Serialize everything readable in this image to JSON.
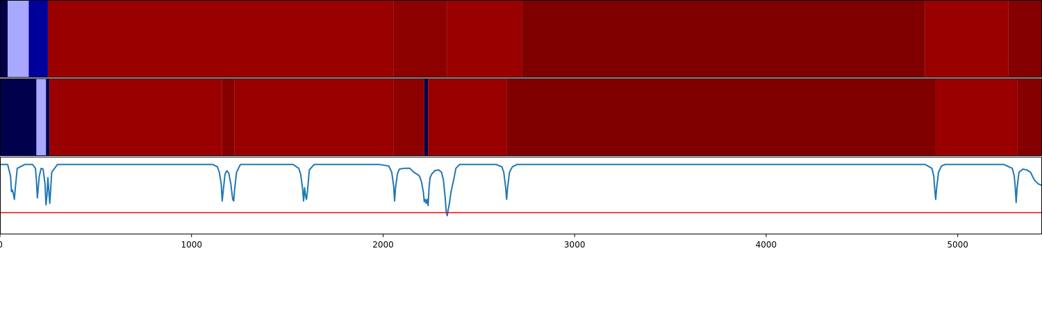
{
  "chart_data": [
    {
      "type": "heatmap",
      "title": "",
      "xlabel": "",
      "ylabel": "",
      "xlim": [
        0,
        5440
      ],
      "segments": [
        {
          "start": 0,
          "end": 40,
          "color": "#00004c"
        },
        {
          "start": 40,
          "end": 150,
          "color": "#a8a8ff"
        },
        {
          "start": 150,
          "end": 250,
          "color": "#00009a"
        },
        {
          "start": 250,
          "end": 2055,
          "color": "#9a0000"
        },
        {
          "start": 2055,
          "end": 2335,
          "color": "#8d0000"
        },
        {
          "start": 2335,
          "end": 2725,
          "color": "#9a0000"
        },
        {
          "start": 2725,
          "end": 4830,
          "color": "#800000"
        },
        {
          "start": 4830,
          "end": 5265,
          "color": "#9a0000"
        },
        {
          "start": 5265,
          "end": 5440,
          "color": "#850000"
        }
      ]
    },
    {
      "type": "heatmap",
      "title": "",
      "xlabel": "",
      "ylabel": "",
      "xlim": [
        0,
        5440
      ],
      "segments": [
        {
          "start": 0,
          "end": 190,
          "color": "#00004c"
        },
        {
          "start": 190,
          "end": 240,
          "color": "#a8a8ff"
        },
        {
          "start": 240,
          "end": 258,
          "color": "#00004c"
        },
        {
          "start": 258,
          "end": 1160,
          "color": "#9a0000"
        },
        {
          "start": 1160,
          "end": 1225,
          "color": "#850000"
        },
        {
          "start": 1225,
          "end": 2055,
          "color": "#9a0000"
        },
        {
          "start": 2055,
          "end": 2215,
          "color": "#8d0000"
        },
        {
          "start": 2215,
          "end": 2235,
          "color": "#00004c"
        },
        {
          "start": 2235,
          "end": 2645,
          "color": "#9a0000"
        },
        {
          "start": 2645,
          "end": 4885,
          "color": "#800000"
        },
        {
          "start": 4885,
          "end": 5310,
          "color": "#9a0000"
        },
        {
          "start": 5310,
          "end": 5440,
          "color": "#850000"
        }
      ]
    },
    {
      "type": "line",
      "title": "",
      "xlabel": "",
      "ylabel": "",
      "xlim": [
        0,
        5440
      ],
      "ylim": [
        -0.9,
        0.1
      ],
      "xticks": [
        "0",
        "1000",
        "2000",
        "3000",
        "4000",
        "5000"
      ],
      "threshold": {
        "value": -0.62,
        "color": "#ff0000"
      },
      "series": [
        {
          "color": "#1f77b4",
          "x": [
            0,
            40,
            55,
            60,
            65,
            70,
            75,
            80,
            90,
            130,
            170,
            185,
            190,
            195,
            205,
            215,
            225,
            235,
            240,
            245,
            250,
            255,
            260,
            270,
            300,
            1110,
            1135,
            1145,
            1155,
            1160,
            1165,
            1175,
            1185,
            1195,
            1205,
            1215,
            1220,
            1225,
            1235,
            1255,
            1530,
            1560,
            1570,
            1580,
            1585,
            1590,
            1595,
            1600,
            1605,
            1615,
            1640,
            1980,
            2030,
            2045,
            2055,
            2060,
            2065,
            2075,
            2085,
            2110,
            2140,
            2160,
            2180,
            2190,
            2200,
            2210,
            2215,
            2220,
            2225,
            2230,
            2235,
            2240,
            2245,
            2255,
            2270,
            2290,
            2305,
            2315,
            2325,
            2330,
            2335,
            2340,
            2345,
            2355,
            2370,
            2380,
            2400,
            2590,
            2620,
            2630,
            2640,
            2645,
            2650,
            2660,
            2675,
            2700,
            4830,
            4865,
            4875,
            4880,
            4885,
            4890,
            4900,
            4915,
            4935,
            5240,
            5285,
            5295,
            5300,
            5305,
            5310,
            5320,
            5340,
            5360,
            5380,
            5400,
            5420,
            5440
          ],
          "y": [
            0,
            0,
            -0.15,
            -0.35,
            -0.33,
            -0.38,
            -0.45,
            -0.3,
            -0.05,
            0,
            0,
            -0.05,
            -0.2,
            -0.43,
            -0.15,
            -0.05,
            -0.06,
            -0.25,
            -0.52,
            -0.4,
            -0.17,
            -0.34,
            -0.5,
            -0.1,
            0,
            0,
            -0.03,
            -0.1,
            -0.25,
            -0.47,
            -0.35,
            -0.12,
            -0.08,
            -0.12,
            -0.25,
            -0.45,
            -0.47,
            -0.32,
            -0.1,
            0,
            0,
            -0.05,
            -0.13,
            -0.32,
            -0.47,
            -0.3,
            -0.4,
            -0.45,
            -0.35,
            -0.07,
            0,
            0,
            -0.02,
            -0.1,
            -0.27,
            -0.47,
            -0.3,
            -0.12,
            -0.06,
            -0.05,
            -0.05,
            -0.1,
            -0.13,
            -0.15,
            -0.22,
            -0.35,
            -0.48,
            -0.45,
            -0.5,
            -0.45,
            -0.53,
            -0.3,
            -0.17,
            -0.12,
            -0.08,
            -0.07,
            -0.1,
            -0.2,
            -0.45,
            -0.62,
            -0.66,
            -0.58,
            -0.52,
            -0.35,
            -0.18,
            -0.05,
            0,
            0,
            -0.03,
            -0.1,
            -0.3,
            -0.45,
            -0.3,
            -0.1,
            -0.03,
            0,
            0,
            -0.05,
            -0.15,
            -0.32,
            -0.45,
            -0.3,
            -0.1,
            -0.02,
            0,
            0,
            -0.05,
            -0.15,
            -0.28,
            -0.49,
            -0.3,
            -0.1,
            -0.06,
            -0.07,
            -0.1,
            -0.2,
            -0.25,
            -0.27
          ]
        }
      ]
    }
  ]
}
